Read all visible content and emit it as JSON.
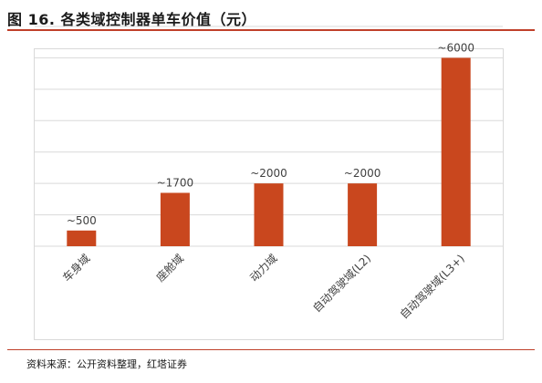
{
  "figure": {
    "title": "图 16. 各类域控制器单车价值（元）",
    "source": "资料来源：公开资料整理，红塔证券"
  },
  "colors": {
    "bar": "#c9471e",
    "accent_rule": "#c0402a",
    "grid": "#d9d9d9"
  },
  "chart_data": {
    "type": "bar",
    "categories": [
      "车身域",
      "座舱域",
      "动力域",
      "自动驾驶域(L2)",
      "自动驾驶域(L3+)"
    ],
    "values": [
      500,
      1700,
      2000,
      2000,
      6000
    ],
    "data_labels": [
      "~500",
      "~1700",
      "~2000",
      "~2000",
      "~6000"
    ],
    "title": "",
    "xlabel": "",
    "ylabel": "",
    "ylim": [
      0,
      7000
    ],
    "grid": true,
    "legend": "none"
  }
}
